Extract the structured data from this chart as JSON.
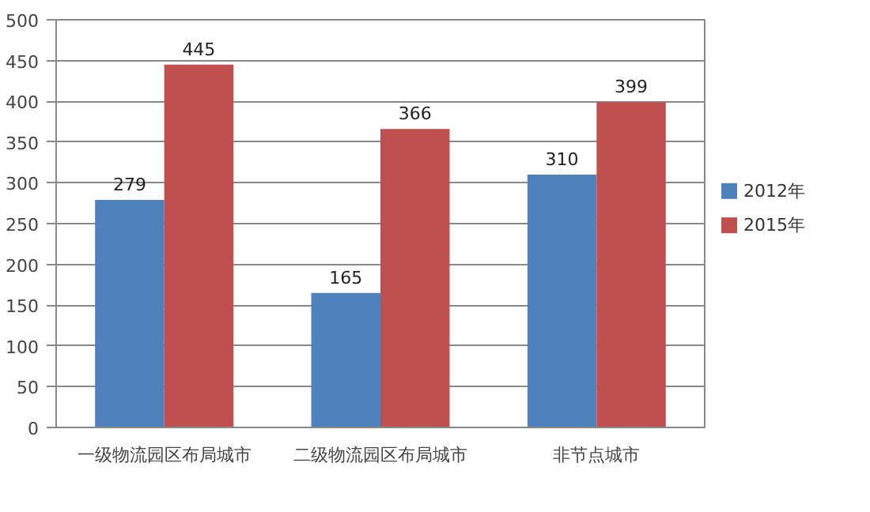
{
  "chart_data": {
    "type": "bar",
    "categories": [
      "一级物流园区布局城市",
      "二级物流园区布局城市",
      "非节点城市"
    ],
    "series": [
      {
        "name": "2012年",
        "color": "#4f81bd",
        "values": [
          279,
          165,
          310
        ]
      },
      {
        "name": "2015年",
        "color": "#c0504d",
        "values": [
          445,
          366,
          399
        ]
      }
    ],
    "ylim": [
      0,
      500
    ],
    "yticks": [
      0,
      50,
      100,
      150,
      200,
      250,
      300,
      350,
      400,
      450,
      500
    ],
    "grid": "y",
    "legend": "right",
    "data_labels": true
  }
}
